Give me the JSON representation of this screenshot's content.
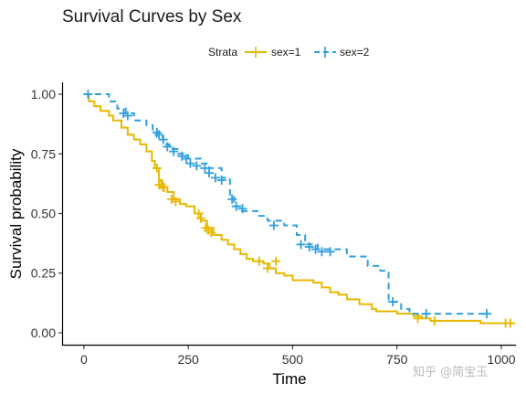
{
  "watermark": "知乎 @简宝玉",
  "chart_data": {
    "type": "line",
    "title": "Survival Curves by Sex",
    "xlabel": "Time",
    "ylabel": "Survival probability",
    "xlim": [
      -50,
      1035
    ],
    "ylim": [
      -0.05,
      1.05
    ],
    "x_ticks": [
      0,
      250,
      500,
      750,
      1000
    ],
    "x_tick_labels": [
      "0",
      "250",
      "500",
      "750",
      "1000"
    ],
    "y_ticks": [
      0,
      0.25,
      0.5,
      0.75,
      1.0
    ],
    "y_tick_labels": [
      "0.00",
      "0.25",
      "0.50",
      "0.75",
      "1.00"
    ],
    "grid": false,
    "legend": {
      "title": "Strata",
      "position": "top"
    },
    "series": [
      {
        "name": "sex=1",
        "color": "#E7B800",
        "dash": "solid",
        "steps": [
          [
            0,
            1.0
          ],
          [
            12,
            0.97
          ],
          [
            25,
            0.95
          ],
          [
            40,
            0.93
          ],
          [
            60,
            0.91
          ],
          [
            70,
            0.89
          ],
          [
            90,
            0.86
          ],
          [
            105,
            0.83
          ],
          [
            120,
            0.81
          ],
          [
            135,
            0.79
          ],
          [
            150,
            0.76
          ],
          [
            163,
            0.72
          ],
          [
            170,
            0.69
          ],
          [
            180,
            0.64
          ],
          [
            188,
            0.61
          ],
          [
            200,
            0.59
          ],
          [
            215,
            0.56
          ],
          [
            230,
            0.54
          ],
          [
            245,
            0.53
          ],
          [
            265,
            0.5
          ],
          [
            280,
            0.47
          ],
          [
            295,
            0.44
          ],
          [
            310,
            0.41
          ],
          [
            330,
            0.39
          ],
          [
            345,
            0.37
          ],
          [
            360,
            0.35
          ],
          [
            375,
            0.33
          ],
          [
            390,
            0.31
          ],
          [
            405,
            0.3
          ],
          [
            430,
            0.29
          ],
          [
            445,
            0.27
          ],
          [
            460,
            0.25
          ],
          [
            480,
            0.24
          ],
          [
            500,
            0.22
          ],
          [
            550,
            0.21
          ],
          [
            570,
            0.19
          ],
          [
            590,
            0.17
          ],
          [
            610,
            0.16
          ],
          [
            630,
            0.14
          ],
          [
            660,
            0.12
          ],
          [
            690,
            0.1
          ],
          [
            700,
            0.09
          ],
          [
            750,
            0.08
          ],
          [
            790,
            0.07
          ],
          [
            810,
            0.06
          ],
          [
            830,
            0.05
          ],
          [
            900,
            0.05
          ],
          [
            950,
            0.04
          ],
          [
            1022,
            0.04
          ]
        ],
        "censor": [
          [
            175,
            0.69
          ],
          [
            180,
            0.62
          ],
          [
            185,
            0.62
          ],
          [
            190,
            0.61
          ],
          [
            192,
            0.61
          ],
          [
            210,
            0.56
          ],
          [
            220,
            0.55
          ],
          [
            275,
            0.5
          ],
          [
            280,
            0.48
          ],
          [
            292,
            0.44
          ],
          [
            298,
            0.43
          ],
          [
            305,
            0.42
          ],
          [
            460,
            0.3
          ],
          [
            420,
            0.3
          ],
          [
            440,
            0.27
          ],
          [
            800,
            0.06
          ],
          [
            840,
            0.05
          ],
          [
            1010,
            0.04
          ],
          [
            1022,
            0.04
          ]
        ]
      },
      {
        "name": "sex=2",
        "color": "#2E9FDF",
        "dash": "dashed",
        "steps": [
          [
            0,
            1.0
          ],
          [
            60,
            0.97
          ],
          [
            80,
            0.94
          ],
          [
            100,
            0.92
          ],
          [
            120,
            0.89
          ],
          [
            150,
            0.87
          ],
          [
            165,
            0.84
          ],
          [
            175,
            0.82
          ],
          [
            190,
            0.79
          ],
          [
            205,
            0.77
          ],
          [
            225,
            0.75
          ],
          [
            250,
            0.73
          ],
          [
            280,
            0.71
          ],
          [
            300,
            0.69
          ],
          [
            330,
            0.65
          ],
          [
            350,
            0.58
          ],
          [
            360,
            0.53
          ],
          [
            375,
            0.51
          ],
          [
            420,
            0.49
          ],
          [
            440,
            0.47
          ],
          [
            480,
            0.45
          ],
          [
            510,
            0.41
          ],
          [
            530,
            0.37
          ],
          [
            560,
            0.35
          ],
          [
            630,
            0.32
          ],
          [
            680,
            0.28
          ],
          [
            710,
            0.26
          ],
          [
            730,
            0.13
          ],
          [
            760,
            0.1
          ],
          [
            780,
            0.08
          ],
          [
            965,
            0.08
          ]
        ],
        "censor": [
          [
            10,
            1.0
          ],
          [
            95,
            0.92
          ],
          [
            105,
            0.91
          ],
          [
            175,
            0.84
          ],
          [
            180,
            0.83
          ],
          [
            190,
            0.81
          ],
          [
            200,
            0.78
          ],
          [
            215,
            0.76
          ],
          [
            235,
            0.74
          ],
          [
            245,
            0.73
          ],
          [
            255,
            0.71
          ],
          [
            270,
            0.7
          ],
          [
            290,
            0.69
          ],
          [
            300,
            0.67
          ],
          [
            315,
            0.65
          ],
          [
            330,
            0.64
          ],
          [
            355,
            0.56
          ],
          [
            365,
            0.53
          ],
          [
            380,
            0.52
          ],
          [
            455,
            0.45
          ],
          [
            520,
            0.37
          ],
          [
            540,
            0.36
          ],
          [
            555,
            0.35
          ],
          [
            570,
            0.34
          ],
          [
            590,
            0.34
          ],
          [
            740,
            0.13
          ],
          [
            820,
            0.08
          ],
          [
            965,
            0.08
          ]
        ]
      }
    ]
  }
}
